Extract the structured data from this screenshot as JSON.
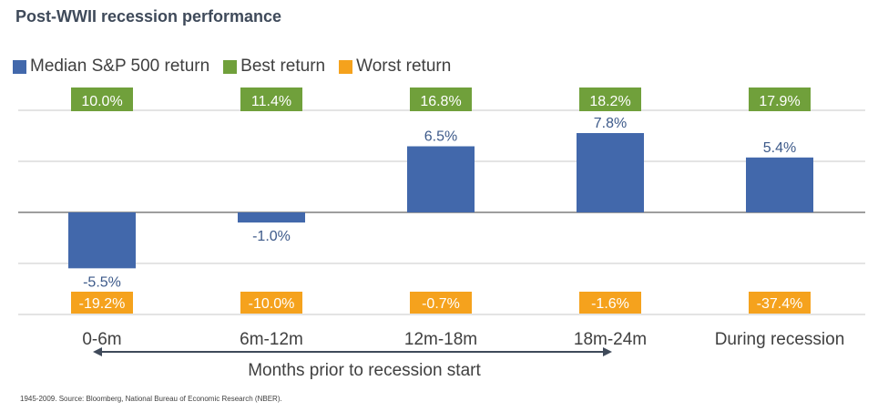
{
  "title": "Post-WWII recession performance",
  "legend": [
    {
      "label": "Median S&P 500 return",
      "color": "#4268ab"
    },
    {
      "label": "Best return",
      "color": "#70a03b"
    },
    {
      "label": "Worst return",
      "color": "#f5a21d"
    }
  ],
  "axis_caption": "Months prior to recession start",
  "source": "1945-2009. Source:  Bloomberg, National Bureau of Economic Research (NBER).",
  "chart_data": {
    "type": "bar",
    "categories": [
      "0-6m",
      "6m-12m",
      "12m-18m",
      "18m-24m",
      "During recession"
    ],
    "series": [
      {
        "name": "Median S&P 500 return",
        "values": [
          -5.5,
          -1.0,
          6.5,
          7.8,
          5.4
        ],
        "labels": [
          "-5.5%",
          "-1.0%",
          "6.5%",
          "7.8%",
          "5.4%"
        ],
        "color": "#4268ab"
      },
      {
        "name": "Best return",
        "values": [
          10.0,
          11.4,
          16.8,
          18.2,
          17.9
        ],
        "labels": [
          "10.0%",
          "11.4%",
          "16.8%",
          "18.2%",
          "17.9%"
        ],
        "color": "#70a03b"
      },
      {
        "name": "Worst return",
        "values": [
          -19.2,
          -10.0,
          -0.7,
          -1.6,
          -37.4
        ],
        "labels": [
          "-19.2%",
          "-10.0%",
          "-0.7%",
          "-1.6%",
          "-37.4%"
        ],
        "color": "#f5a21d"
      }
    ],
    "grid": true,
    "legend_position": "top-left"
  }
}
